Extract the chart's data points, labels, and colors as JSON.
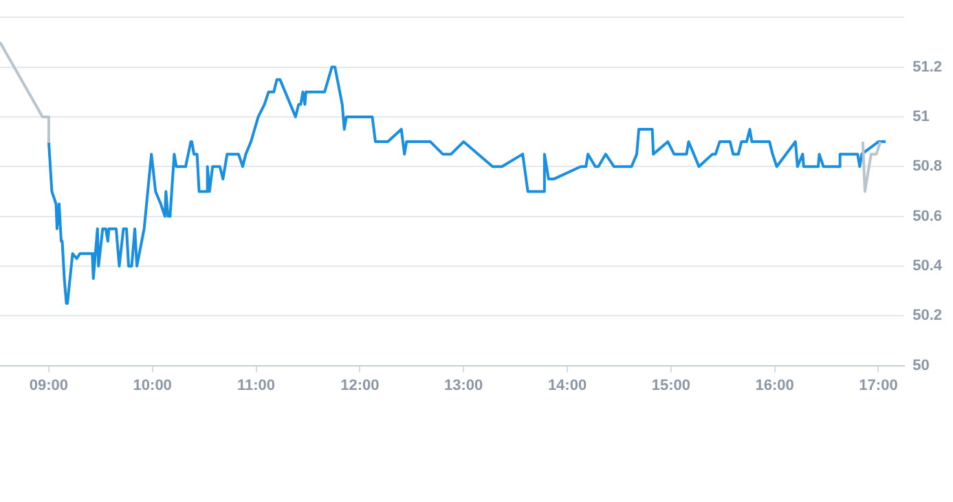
{
  "chart_data": {
    "type": "line",
    "xlim": [
      8.53,
      17.25
    ],
    "ylim": [
      50,
      51.4
    ],
    "xticks": [
      {
        "value": 9,
        "label": "09:00"
      },
      {
        "value": 10,
        "label": "10:00"
      },
      {
        "value": 11,
        "label": "11:00"
      },
      {
        "value": 12,
        "label": "12:00"
      },
      {
        "value": 13,
        "label": "13:00"
      },
      {
        "value": 14,
        "label": "14:00"
      },
      {
        "value": 15,
        "label": "15:00"
      },
      {
        "value": 16,
        "label": "16:00"
      },
      {
        "value": 17,
        "label": "17:00"
      }
    ],
    "yticks": [
      50,
      50.2,
      50.4,
      50.6,
      50.8,
      51,
      51.2,
      {
        "value": 51.4,
        "label": null
      }
    ],
    "grid": "y",
    "legend": false,
    "marker": "none",
    "line_style": "solid",
    "series": [
      {
        "color": "#b9c5cd",
        "x": [
          8.53,
          8.94,
          9.0,
          9.0,
          13.0,
          16.85,
          16.87,
          16.93,
          16.98,
          17.02
        ],
        "values": [
          51.3,
          51.0,
          51.0,
          50.9,
          null,
          50.9,
          50.7,
          50.85,
          50.85,
          50.9
        ]
      },
      {
        "color": "#1a8fe0",
        "x": [
          9.0,
          9.03,
          9.07,
          9.08,
          9.1,
          9.12,
          9.13,
          9.15,
          9.17,
          9.18,
          9.23,
          9.27,
          9.3,
          9.42,
          9.43,
          9.47,
          9.48,
          9.52,
          9.55,
          9.57,
          9.58,
          9.65,
          9.68,
          9.72,
          9.75,
          9.77,
          9.8,
          9.83,
          9.85,
          9.92,
          9.99,
          10.03,
          10.08,
          10.12,
          10.13,
          10.15,
          10.17,
          10.21,
          10.23,
          10.32,
          10.37,
          10.38,
          10.4,
          10.43,
          10.45,
          10.52,
          10.53,
          10.55,
          10.58,
          10.65,
          10.68,
          10.72,
          10.83,
          10.87,
          10.9,
          10.95,
          11.02,
          11.08,
          11.12,
          11.17,
          11.2,
          11.23,
          11.38,
          11.41,
          11.43,
          11.45,
          11.47,
          11.48,
          11.66,
          11.73,
          11.76,
          11.83,
          11.85,
          11.87,
          12.12,
          12.15,
          12.27,
          12.4,
          12.43,
          12.45,
          12.68,
          12.8,
          12.88,
          13.0,
          13.28,
          13.37,
          13.57,
          13.62,
          13.77,
          13.78,
          13.82,
          13.87,
          14.13,
          14.18,
          14.2,
          14.27,
          14.3,
          14.37,
          14.45,
          14.62,
          14.67,
          14.69,
          14.82,
          14.83,
          14.97,
          15.03,
          15.15,
          15.17,
          15.27,
          15.4,
          15.43,
          15.47,
          15.57,
          15.6,
          15.65,
          15.68,
          15.73,
          15.76,
          15.78,
          15.95,
          15.98,
          16.02,
          16.2,
          16.22,
          16.27,
          16.28,
          16.42,
          16.43,
          16.47,
          16.62,
          16.63,
          16.8,
          16.82,
          16.84,
          17.0,
          17.07
        ],
        "values": [
          50.9,
          50.7,
          50.65,
          50.55,
          50.65,
          50.5,
          50.5,
          50.35,
          50.25,
          50.25,
          50.45,
          50.43,
          50.45,
          50.45,
          50.35,
          50.55,
          50.4,
          50.55,
          50.55,
          50.5,
          50.55,
          50.55,
          50.4,
          50.55,
          50.55,
          50.4,
          50.4,
          50.55,
          50.4,
          50.55,
          50.85,
          50.7,
          50.65,
          50.6,
          50.7,
          50.6,
          50.6,
          50.85,
          50.8,
          50.8,
          50.9,
          50.9,
          50.85,
          50.85,
          50.7,
          50.7,
          50.8,
          50.7,
          50.8,
          50.8,
          50.75,
          50.85,
          50.85,
          50.8,
          50.85,
          50.9,
          51.0,
          51.05,
          51.1,
          51.1,
          51.15,
          51.15,
          51.0,
          51.05,
          51.05,
          51.1,
          51.05,
          51.1,
          51.1,
          51.2,
          51.2,
          51.05,
          50.95,
          51.0,
          51.0,
          50.9,
          50.9,
          50.95,
          50.85,
          50.9,
          50.9,
          50.85,
          50.85,
          50.9,
          50.8,
          50.8,
          50.85,
          50.7,
          50.7,
          50.85,
          50.75,
          50.75,
          50.8,
          50.8,
          50.85,
          50.8,
          50.8,
          50.85,
          50.8,
          50.8,
          50.85,
          50.95,
          50.95,
          50.85,
          50.9,
          50.85,
          50.85,
          50.9,
          50.8,
          50.85,
          50.85,
          50.9,
          50.9,
          50.85,
          50.85,
          50.9,
          50.9,
          50.95,
          50.9,
          50.9,
          50.85,
          50.8,
          50.9,
          50.8,
          50.85,
          50.8,
          50.8,
          50.85,
          50.8,
          50.8,
          50.85,
          50.85,
          50.8,
          50.85,
          50.9,
          50.9
        ]
      }
    ]
  }
}
